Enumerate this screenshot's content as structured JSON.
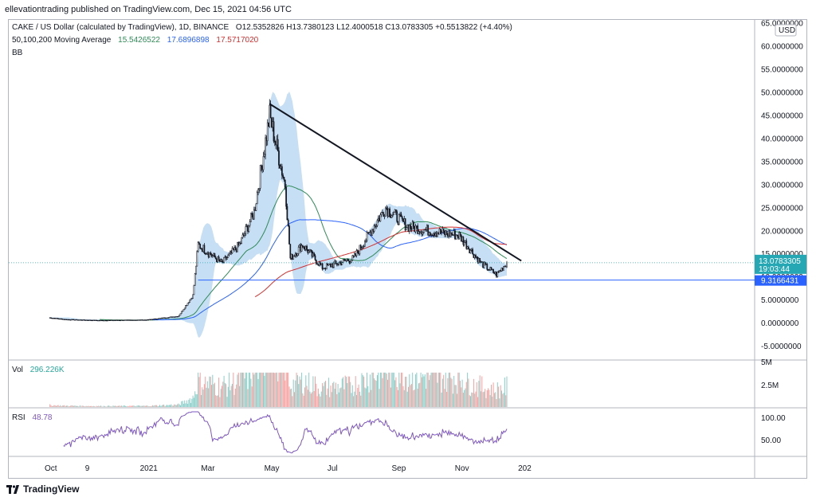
{
  "header": {
    "caption": "ellevationtrading published on TradingView.com, Dec 15, 2021 04:56 UTC"
  },
  "legend": {
    "symbol_line": "CAKE / US Dollar (calculated by TradingView), 1D, BINANCE",
    "ohlc": "O12.5352826 H13.7380123 L12.4000518 C13.0783305 +0.5513822 (+4.40%)",
    "ma_label": "50,100,200 Moving Average",
    "ma50_value": "15.5426522",
    "ma100_value": "17.6896898",
    "ma200_value": "17.5717020",
    "bb_label": "BB",
    "vol_label": "Vol",
    "vol_value": "296.226K",
    "rsi_label": "RSI",
    "rsi_value": "48.78"
  },
  "price_axis": {
    "currency_badge": "USD",
    "ticks": [
      "65.0000000",
      "60.0000000",
      "55.0000000",
      "50.0000000",
      "45.0000000",
      "40.0000000",
      "35.0000000",
      "30.0000000",
      "25.0000000",
      "20.0000000",
      "15.0000000",
      "10.0000000",
      "5.0000000",
      "0.0000000",
      "-5.0000000"
    ],
    "last_price": "13.0783305",
    "countdown": "19:03:44",
    "support_level": "9.3166431"
  },
  "volume_axis": {
    "ticks": [
      "5M",
      "2.5M"
    ]
  },
  "rsi_axis": {
    "ticks": [
      "100.00",
      "50.00"
    ]
  },
  "time_axis": {
    "ticks": [
      "Oct",
      "9",
      "2021",
      "Mar",
      "May",
      "Jul",
      "Sep",
      "Nov",
      "202"
    ]
  },
  "footer": {
    "brand": "TradingView"
  },
  "colors": {
    "candle": "#131722",
    "ma50": "#2e8b57",
    "ma100": "#2962ff",
    "ma200": "#d32f2f",
    "bb_fill": "#b3d4f0",
    "rsi": "#7e57c2",
    "last_price_tag": "#26a7b4",
    "support_tag": "#2962ff",
    "trendline": "#131722"
  },
  "chart_data": {
    "type": "candlestick",
    "title": "CAKE / US Dollar (calculated by TradingView), 1D, BINANCE",
    "ylim": [
      -8,
      65
    ],
    "grid": false,
    "price_path_approx": [
      {
        "x": "2020-09-29",
        "y": 1.2
      },
      {
        "x": "2020-10-15",
        "y": 0.8
      },
      {
        "x": "2020-11-15",
        "y": 0.6
      },
      {
        "x": "2021-01-01",
        "y": 0.7
      },
      {
        "x": "2021-02-01",
        "y": 1.5
      },
      {
        "x": "2021-02-15",
        "y": 6.0
      },
      {
        "x": "2021-02-20",
        "y": 17.0
      },
      {
        "x": "2021-03-15",
        "y": 13.0
      },
      {
        "x": "2021-04-01",
        "y": 17.0
      },
      {
        "x": "2021-04-15",
        "y": 24.0
      },
      {
        "x": "2021-04-30",
        "y": 45.0
      },
      {
        "x": "2021-05-15",
        "y": 30.0
      },
      {
        "x": "2021-05-20",
        "y": 14.0
      },
      {
        "x": "2021-06-01",
        "y": 17.0
      },
      {
        "x": "2021-06-20",
        "y": 12.0
      },
      {
        "x": "2021-07-20",
        "y": 14.0
      },
      {
        "x": "2021-08-20",
        "y": 25.0
      },
      {
        "x": "2021-09-10",
        "y": 21.0
      },
      {
        "x": "2021-10-01",
        "y": 20.0
      },
      {
        "x": "2021-10-30",
        "y": 19.0
      },
      {
        "x": "2021-11-20",
        "y": 13.0
      },
      {
        "x": "2021-12-05",
        "y": 10.5
      },
      {
        "x": "2021-12-15",
        "y": 13.08
      }
    ],
    "trendline": [
      {
        "x": "2021-04-30",
        "y": 47.5
      },
      {
        "x": "2021-12-29",
        "y": 13.5
      }
    ],
    "support_line": {
      "y": 9.3166431,
      "from": "2021-02-20"
    },
    "volume_max": 5000000,
    "rsi_range": [
      0,
      100
    ]
  }
}
